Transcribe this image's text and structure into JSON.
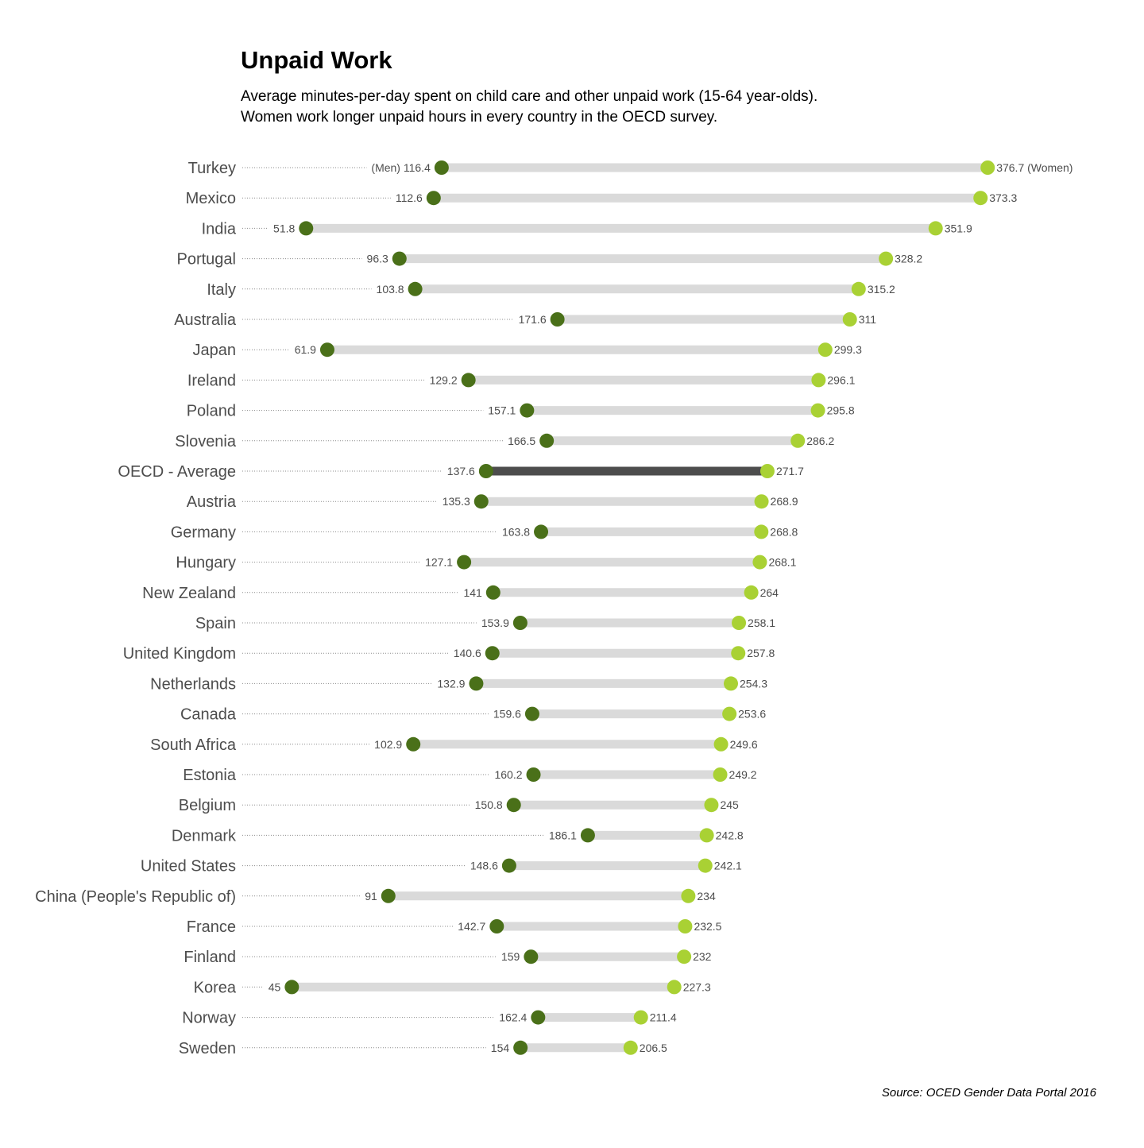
{
  "chart_data": {
    "type": "dumbbell",
    "title": "Unpaid Work",
    "subtitle_lines": [
      "Average minutes-per-day spent on child care and other unpaid work (15-64 year-olds).",
      "Women work longer unpaid hours in every country in the OECD survey."
    ],
    "source": "Source: OCED Gender Data Portal 2016",
    "series_labels": {
      "men": "(Men)",
      "women": "(Women)"
    },
    "highlight_category": "OECD - Average",
    "colors": {
      "men": "#4a7019",
      "women": "#a9d134",
      "range_bar": "#dadada",
      "range_bar_highlight": "#4d4d4d",
      "label_text": "#4d4d4d"
    },
    "categories": [
      "Turkey",
      "Mexico",
      "India",
      "Portugal",
      "Italy",
      "Australia",
      "Japan",
      "Ireland",
      "Poland",
      "Slovenia",
      "OECD - Average",
      "Austria",
      "Germany",
      "Hungary",
      "New Zealand",
      "Spain",
      "United Kingdom",
      "Netherlands",
      "Canada",
      "South Africa",
      "Estonia",
      "Belgium",
      "Denmark",
      "United States",
      "China (People's Republic of)",
      "France",
      "Finland",
      "Korea",
      "Norway",
      "Sweden"
    ],
    "men": [
      116.4,
      112.6,
      51.8,
      96.3,
      103.8,
      171.6,
      61.9,
      129.2,
      157.1,
      166.5,
      137.6,
      135.3,
      163.8,
      127.1,
      141,
      153.9,
      140.6,
      132.9,
      159.6,
      102.9,
      160.2,
      150.8,
      186.1,
      148.6,
      91,
      142.7,
      159,
      45,
      162.4,
      154
    ],
    "women": [
      376.7,
      373.3,
      351.9,
      328.2,
      315.2,
      311,
      299.3,
      296.1,
      295.8,
      286.2,
      271.7,
      268.9,
      268.8,
      268.1,
      264,
      258.1,
      257.8,
      254.3,
      253.6,
      249.6,
      249.2,
      245,
      242.8,
      242.1,
      234,
      232.5,
      232,
      227.3,
      211.4,
      206.5
    ]
  }
}
